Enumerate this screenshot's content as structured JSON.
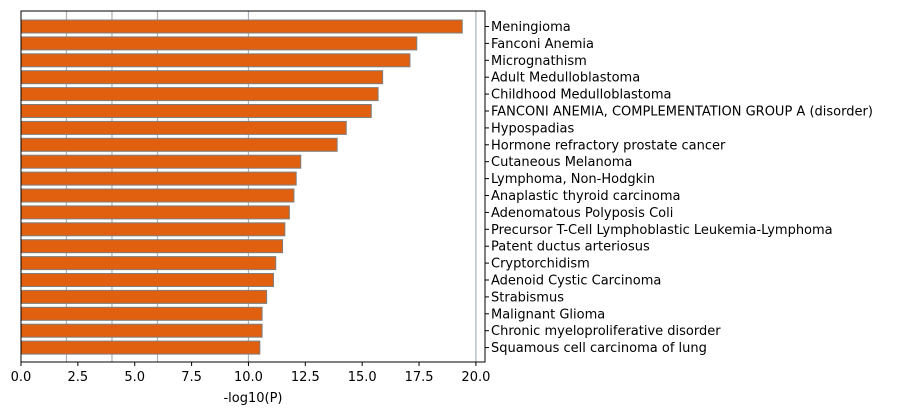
{
  "chart_data": {
    "type": "bar",
    "orientation": "horizontal",
    "categories": [
      "Meningioma",
      "Fanconi Anemia",
      "Micrognathism",
      "Adult Medulloblastoma",
      "Childhood Medulloblastoma",
      "FANCONI ANEMIA, COMPLEMENTATION GROUP A (disorder)",
      "Hypospadias",
      "Hormone refractory prostate cancer",
      "Cutaneous Melanoma",
      "Lymphoma, Non-Hodgkin",
      "Anaplastic thyroid carcinoma",
      "Adenomatous Polyposis Coli",
      "Precursor T-Cell Lymphoblastic Leukemia-Lymphoma",
      "Patent ductus arteriosus",
      "Cryptorchidism",
      "Adenoid Cystic Carcinoma",
      "Strabismus",
      "Malignant Glioma",
      "Chronic myeloproliferative disorder",
      "Squamous cell carcinoma of lung"
    ],
    "values": [
      19.4,
      17.4,
      17.1,
      15.9,
      15.7,
      15.4,
      14.3,
      13.9,
      12.3,
      12.1,
      12.0,
      11.8,
      11.6,
      11.5,
      11.2,
      11.1,
      10.8,
      10.6,
      10.6,
      10.5
    ],
    "xlabel": "-log10(P)",
    "ylabel": "",
    "xlim": [
      0,
      20.4
    ],
    "xticks": [
      "0.0",
      "2.5",
      "5.0",
      "7.5",
      "10.0",
      "12.5",
      "15.0",
      "17.5",
      "20.0"
    ],
    "vertical_gridlines_at": [
      2,
      4,
      6,
      10,
      20
    ],
    "bar_color": "#e0600f",
    "bar_edge_color": "#7f7f7f",
    "gridline_color": "#a9b1ba"
  }
}
